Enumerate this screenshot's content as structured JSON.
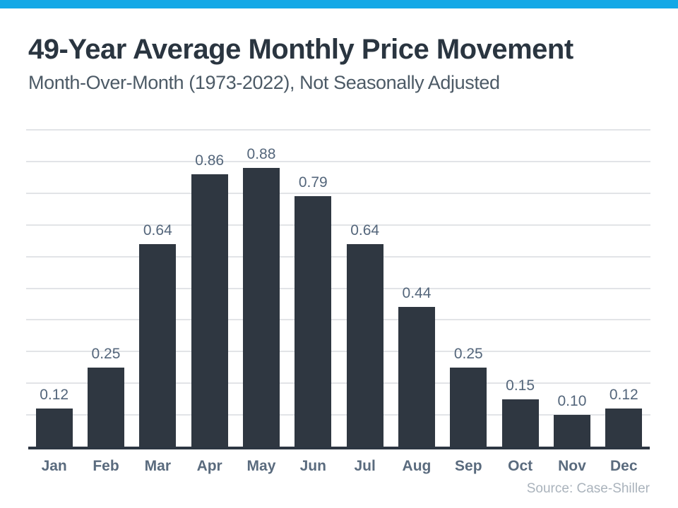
{
  "header": {
    "title": "49-Year Average Monthly Price Movement",
    "subtitle": "Month-Over-Month (1973-2022), Not Seasonally Adjusted"
  },
  "chart_data": {
    "type": "bar",
    "categories": [
      "Jan",
      "Feb",
      "Mar",
      "Apr",
      "May",
      "Jun",
      "Jul",
      "Aug",
      "Sep",
      "Oct",
      "Nov",
      "Dec"
    ],
    "values": [
      0.12,
      0.25,
      0.64,
      0.86,
      0.88,
      0.79,
      0.64,
      0.44,
      0.25,
      0.15,
      0.1,
      0.12
    ],
    "value_labels": [
      "0.12",
      "0.25",
      "0.64",
      "0.86",
      "0.88",
      "0.79",
      "0.64",
      "0.44",
      "0.25",
      "0.15",
      "0.10",
      "0.12"
    ],
    "title": "49-Year Average Monthly Price Movement",
    "subtitle": "Month-Over-Month (1973-2022), Not Seasonally Adjusted",
    "xlabel": "",
    "ylabel": "",
    "ylim": [
      0,
      1.0
    ],
    "gridline_step": 0.1,
    "grid": "horizontal-only",
    "legend": "none",
    "bar_labels": "above-bars"
  },
  "footer": {
    "source": "Source: Case-Shiller"
  },
  "colors": {
    "accent_bar": "#14a8e6",
    "bar_fill": "#2f3741",
    "title": "#2a3540",
    "subtitle": "#4c5a66",
    "gridline": "#e2e4e7",
    "axis_line": "#2d3642",
    "value_label": "#54667b",
    "month_label": "#5a6b7e",
    "source": "#aab3bc",
    "background": "#ffffff"
  }
}
